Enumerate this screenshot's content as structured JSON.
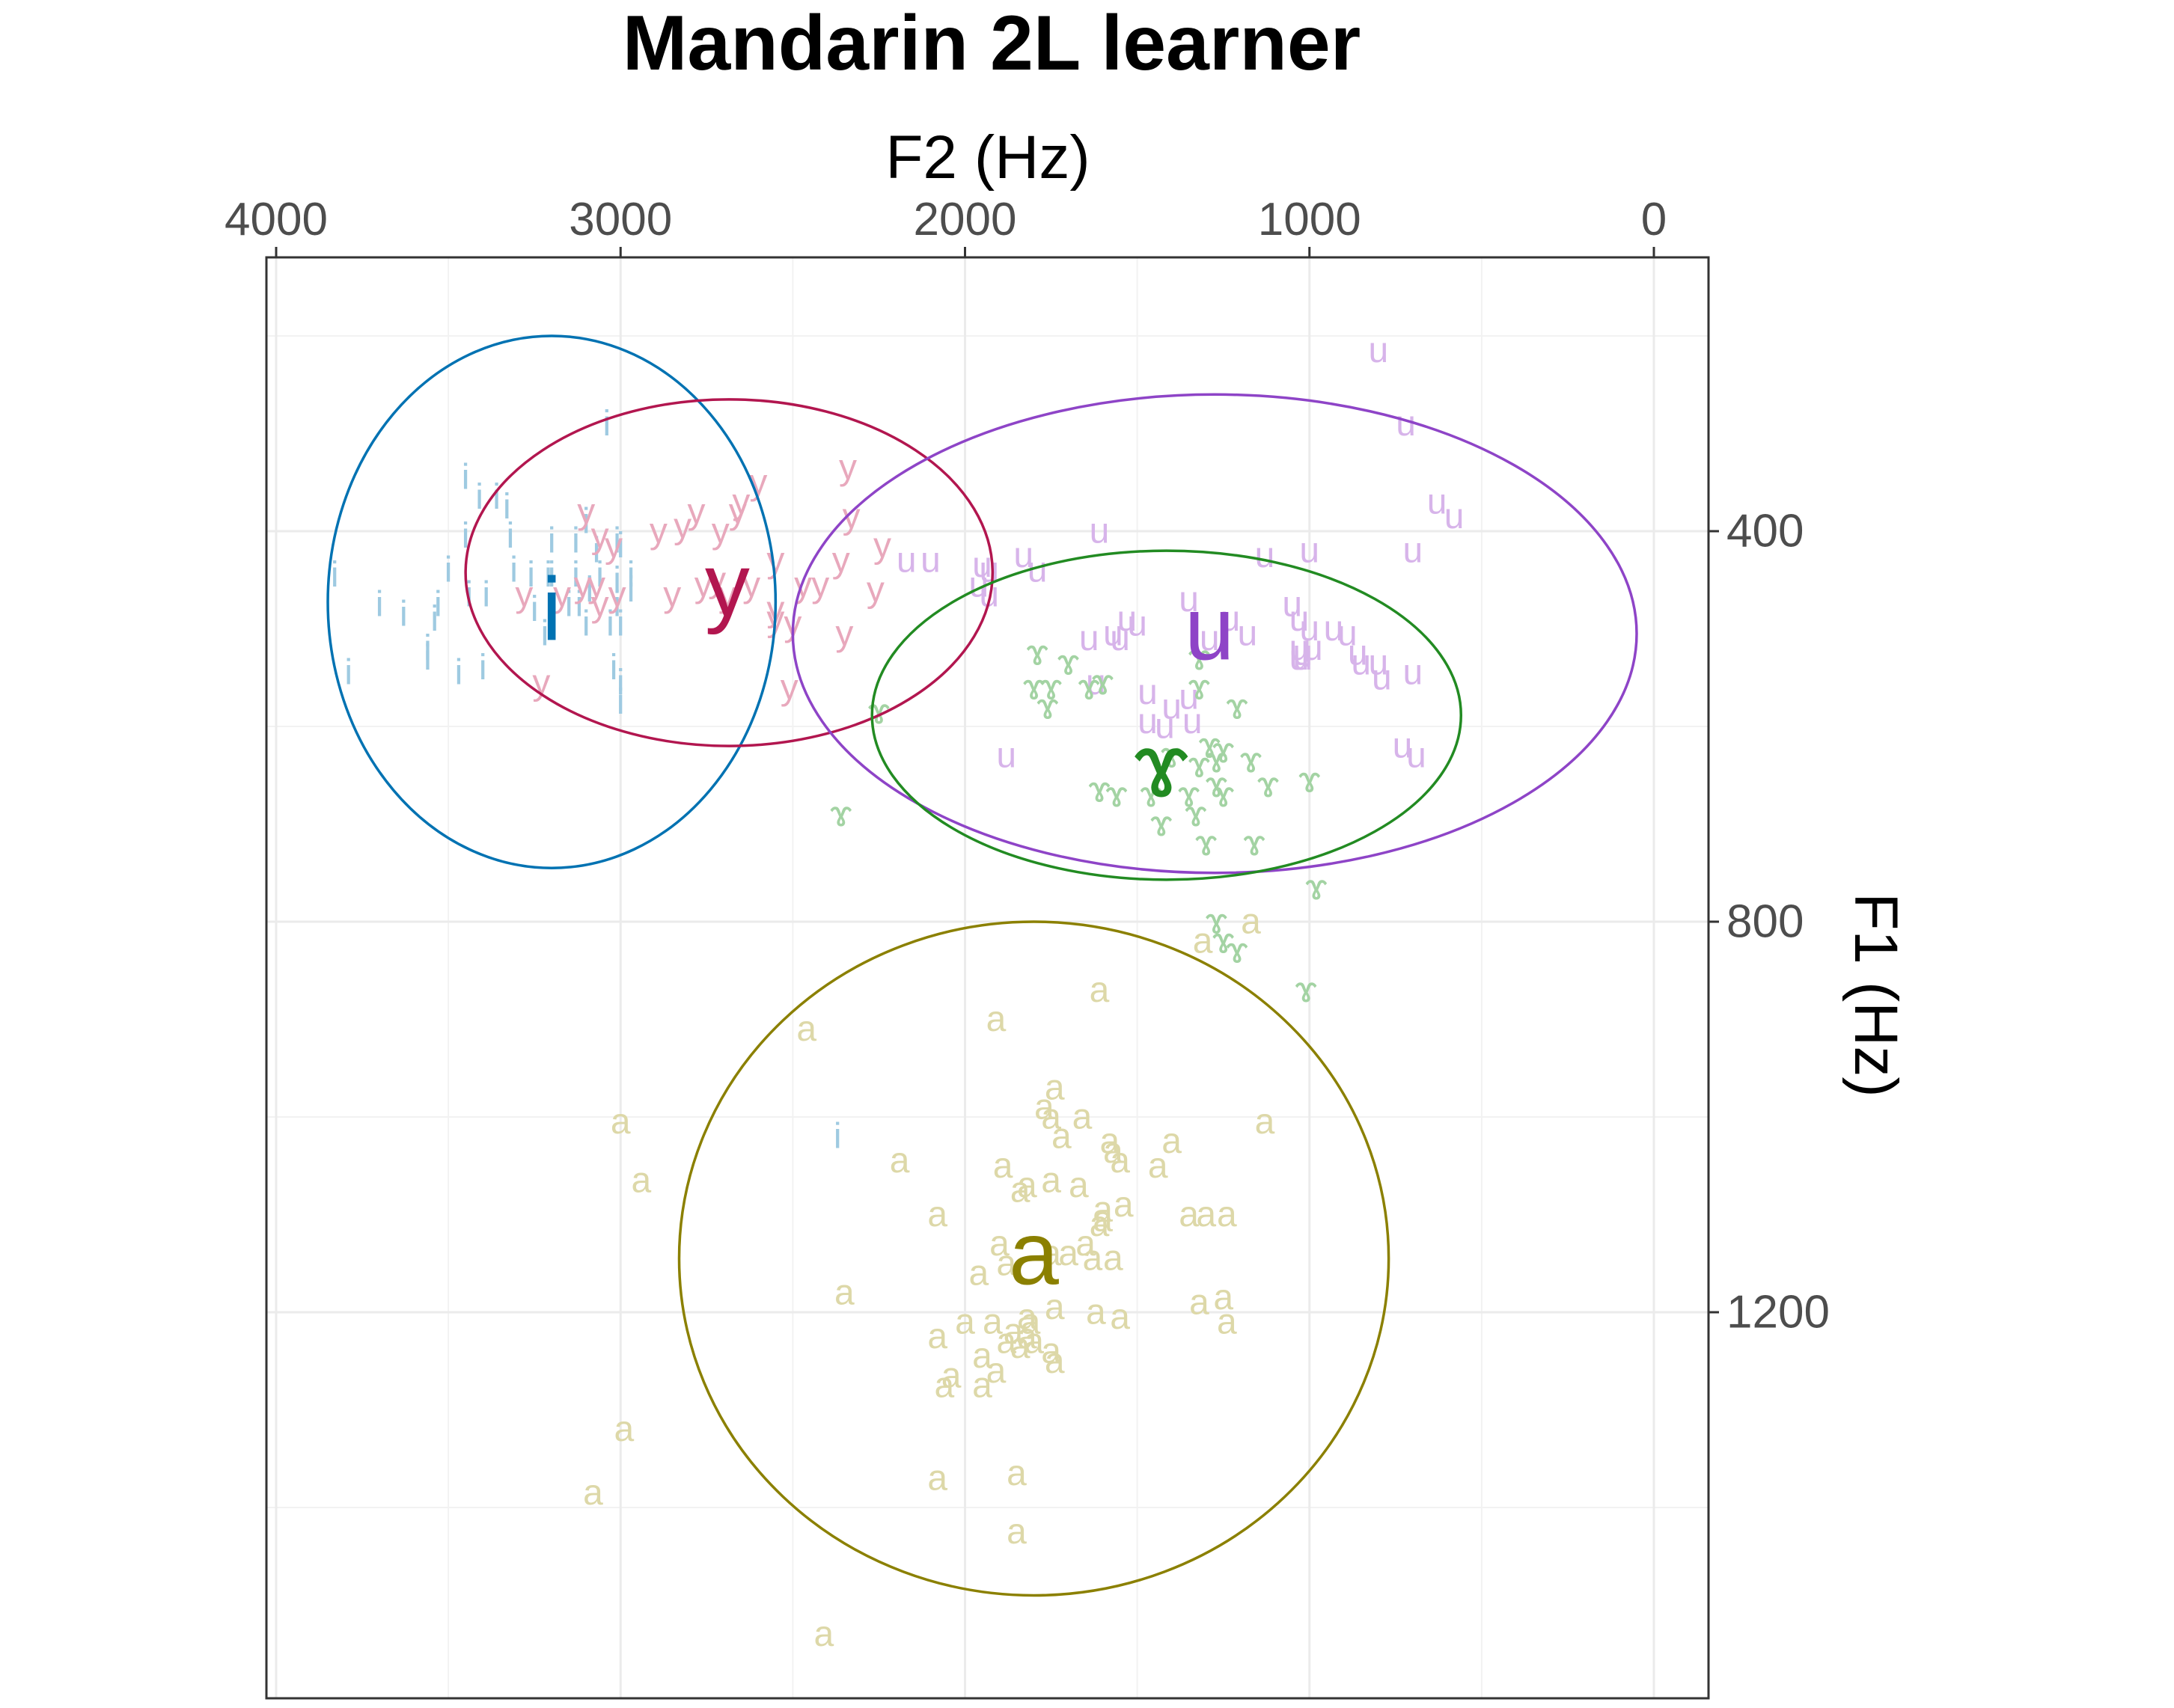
{
  "chart_data": {
    "type": "scatter",
    "title": "Mandarin 2L learner",
    "xlabel": "F2 (Hz)",
    "ylabel": "F1 (Hz)",
    "x_axis_position": "top",
    "y_axis_position": "right",
    "x_reversed": true,
    "y_reversed": true,
    "xlim": [
      4000,
      0
    ],
    "ylim": [
      200,
      1500
    ],
    "x_ticks": [
      4000,
      3000,
      2000,
      1000,
      0
    ],
    "x_tick_labels": [
      "4000",
      "3000",
      "2000",
      "1000",
      "0"
    ],
    "y_ticks": [
      400,
      800,
      1200
    ],
    "y_tick_labels": [
      "400",
      "800",
      "1200"
    ],
    "x_minor_ticks": [
      3500,
      2500,
      1500,
      500
    ],
    "y_minor_ticks": [
      200,
      600,
      1000,
      1400
    ],
    "grid": true,
    "series": [
      {
        "vowel": "i",
        "color": "#0072B2",
        "point_color": "#9ecae1",
        "mean": {
          "f2": 3200,
          "f1": 480
        },
        "ellipse": {
          "f2_min": 2550,
          "f2_max": 3850,
          "f1_min": 200,
          "f1_max": 745
        },
        "points": [
          [
            3040,
            290
          ],
          [
            3450,
            345
          ],
          [
            3360,
            365
          ],
          [
            3410,
            365
          ],
          [
            3330,
            375
          ],
          [
            3100,
            390
          ],
          [
            3450,
            405
          ],
          [
            3320,
            405
          ],
          [
            3010,
            410
          ],
          [
            3200,
            410
          ],
          [
            3130,
            410
          ],
          [
            3000,
            415
          ],
          [
            3070,
            420
          ],
          [
            3830,
            445
          ],
          [
            3500,
            440
          ],
          [
            3200,
            445
          ],
          [
            3260,
            445
          ],
          [
            3310,
            440
          ],
          [
            3210,
            445
          ],
          [
            3060,
            445
          ],
          [
            2970,
            445
          ],
          [
            3130,
            445
          ],
          [
            3010,
            450
          ],
          [
            3440,
            465
          ],
          [
            3390,
            465
          ],
          [
            3530,
            475
          ],
          [
            3150,
            475
          ],
          [
            3120,
            475
          ],
          [
            3010,
            475
          ],
          [
            2970,
            460
          ],
          [
            3090,
            460
          ],
          [
            3700,
            475
          ],
          [
            3630,
            485
          ],
          [
            3540,
            490
          ],
          [
            3250,
            480
          ],
          [
            3000,
            495
          ],
          [
            3030,
            495
          ],
          [
            3100,
            495
          ],
          [
            3220,
            505
          ],
          [
            3560,
            520
          ],
          [
            3560,
            530
          ],
          [
            3400,
            540
          ],
          [
            3020,
            540
          ],
          [
            3000,
            555
          ],
          [
            3790,
            545
          ],
          [
            3470,
            545
          ],
          [
            3000,
            575
          ],
          [
            2370,
            1020
          ]
        ]
      },
      {
        "vowel": "y",
        "color": "#B2164F",
        "point_color": "#e8a8bc",
        "mean": {
          "f2": 2690,
          "f1": 455
        },
        "ellipse": {
          "f2_min": 1920,
          "f2_max": 3450,
          "f1_min": 265,
          "f1_max": 620
        },
        "points": [
          [
            2340,
            335
          ],
          [
            2600,
            350
          ],
          [
            2650,
            370
          ],
          [
            3100,
            380
          ],
          [
            2780,
            380
          ],
          [
            2660,
            380
          ],
          [
            2330,
            385
          ],
          [
            2820,
            395
          ],
          [
            2710,
            400
          ],
          [
            2890,
            400
          ],
          [
            3060,
            405
          ],
          [
            3020,
            415
          ],
          [
            2240,
            415
          ],
          [
            2360,
            430
          ],
          [
            2550,
            430
          ],
          [
            3110,
            455
          ],
          [
            3070,
            455
          ],
          [
            2720,
            450
          ],
          [
            2760,
            455
          ],
          [
            2620,
            455
          ],
          [
            2470,
            455
          ],
          [
            2420,
            455
          ],
          [
            2260,
            460
          ],
          [
            3280,
            465
          ],
          [
            3170,
            465
          ],
          [
            3010,
            465
          ],
          [
            2850,
            465
          ],
          [
            2690,
            465
          ],
          [
            3060,
            475
          ],
          [
            2550,
            480
          ],
          [
            2550,
            490
          ],
          [
            2500,
            495
          ],
          [
            2350,
            505
          ],
          [
            3230,
            555
          ],
          [
            2510,
            560
          ]
        ]
      },
      {
        "vowel": "u",
        "color": "#8E44C7",
        "point_color": "#d7b4ea",
        "mean": {
          "f2": 1290,
          "f1": 500
        },
        "ellipse": {
          "f2_min": 50,
          "f2_max": 2500,
          "f1_min": 260,
          "f1_max": 750
        },
        "points": [
          [
            800,
            215
          ],
          [
            720,
            290
          ],
          [
            630,
            370
          ],
          [
            580,
            385
          ],
          [
            1610,
            400
          ],
          [
            700,
            420
          ],
          [
            1000,
            420
          ],
          [
            1130,
            425
          ],
          [
            1830,
            425
          ],
          [
            2170,
            430
          ],
          [
            2100,
            430
          ],
          [
            1950,
            435
          ],
          [
            1930,
            440
          ],
          [
            1790,
            440
          ],
          [
            1960,
            455
          ],
          [
            1350,
            470
          ],
          [
            1050,
            475
          ],
          [
            1930,
            465
          ],
          [
            1030,
            490
          ],
          [
            1230,
            490
          ],
          [
            1530,
            490
          ],
          [
            1500,
            495
          ],
          [
            1000,
            500
          ],
          [
            930,
            500
          ],
          [
            1180,
            505
          ],
          [
            890,
            505
          ],
          [
            1640,
            510
          ],
          [
            1290,
            510
          ],
          [
            990,
            520
          ],
          [
            1030,
            520
          ],
          [
            1550,
            510
          ],
          [
            1570,
            505
          ],
          [
            1020,
            525
          ],
          [
            1030,
            530
          ],
          [
            860,
            525
          ],
          [
            1020,
            530
          ],
          [
            800,
            535
          ],
          [
            850,
            535
          ],
          [
            700,
            545
          ],
          [
            790,
            550
          ],
          [
            1620,
            555
          ],
          [
            1470,
            565
          ],
          [
            1350,
            570
          ],
          [
            1400,
            580
          ],
          [
            1340,
            595
          ],
          [
            1470,
            595
          ],
          [
            1420,
            600
          ],
          [
            1880,
            630
          ],
          [
            730,
            620
          ],
          [
            690,
            630
          ]
        ]
      },
      {
        "vowel": "ɤ",
        "color": "#228B22",
        "point_color": "#a3d3a3",
        "mean": {
          "f2": 1430,
          "f1": 640
        },
        "ellipse": {
          "f2_min": 560,
          "f2_max": 2270,
          "f1_min": 420,
          "f1_max": 757
        },
        "points": [
          [
            1790,
            525
          ],
          [
            1700,
            535
          ],
          [
            1600,
            555
          ],
          [
            1750,
            560
          ],
          [
            1640,
            560
          ],
          [
            1800,
            560
          ],
          [
            1320,
            530
          ],
          [
            1320,
            560
          ],
          [
            1210,
            580
          ],
          [
            1760,
            580
          ],
          [
            2250,
            585
          ],
          [
            1290,
            620
          ],
          [
            1250,
            625
          ],
          [
            1400,
            630
          ],
          [
            1170,
            635
          ],
          [
            1320,
            640
          ],
          [
            1270,
            635
          ],
          [
            1120,
            660
          ],
          [
            1000,
            655
          ],
          [
            1270,
            660
          ],
          [
            1460,
            670
          ],
          [
            1560,
            670
          ],
          [
            1610,
            665
          ],
          [
            1350,
            670
          ],
          [
            1250,
            670
          ],
          [
            1330,
            690
          ],
          [
            2360,
            690
          ],
          [
            1430,
            700
          ],
          [
            1300,
            720
          ],
          [
            1160,
            720
          ],
          [
            980,
            765
          ],
          [
            1270,
            800
          ],
          [
            1250,
            820
          ],
          [
            1210,
            830
          ],
          [
            1010,
            870
          ]
        ]
      },
      {
        "vowel": "a",
        "color": "#8B8000",
        "point_color": "#ddd8a8",
        "mean": {
          "f2": 1800,
          "f1": 1140
        },
        "ellipse": {
          "f2_min": 770,
          "f2_max": 2830,
          "f1_min": 800,
          "f1_max": 1490
        },
        "points": [
          [
            1170,
            800
          ],
          [
            1310,
            820
          ],
          [
            1610,
            870
          ],
          [
            1910,
            900
          ],
          [
            2460,
            910
          ],
          [
            1740,
            970
          ],
          [
            1770,
            990
          ],
          [
            1660,
            1000
          ],
          [
            1750,
            1000
          ],
          [
            3000,
            1005
          ],
          [
            1130,
            1005
          ],
          [
            1720,
            1020
          ],
          [
            1400,
            1025
          ],
          [
            1580,
            1025
          ],
          [
            1570,
            1035
          ],
          [
            1550,
            1045
          ],
          [
            2190,
            1045
          ],
          [
            1440,
            1050
          ],
          [
            1890,
            1050
          ],
          [
            2940,
            1065
          ],
          [
            1750,
            1065
          ],
          [
            1820,
            1070
          ],
          [
            1670,
            1070
          ],
          [
            1840,
            1075
          ],
          [
            1540,
            1090
          ],
          [
            1600,
            1095
          ],
          [
            1600,
            1105
          ],
          [
            1350,
            1100
          ],
          [
            1300,
            1100
          ],
          [
            1240,
            1100
          ],
          [
            2080,
            1100
          ],
          [
            1610,
            1110
          ],
          [
            1900,
            1130
          ],
          [
            1650,
            1130
          ],
          [
            1700,
            1140
          ],
          [
            1570,
            1145
          ],
          [
            1880,
            1150
          ],
          [
            1630,
            1145
          ],
          [
            1750,
            1140
          ],
          [
            1960,
            1160
          ],
          [
            2350,
            1180
          ],
          [
            1320,
            1190
          ],
          [
            1250,
            1185
          ],
          [
            1620,
            1200
          ],
          [
            1740,
            1195
          ],
          [
            1550,
            1205
          ],
          [
            1820,
            1205
          ],
          [
            1240,
            1210
          ],
          [
            2000,
            1210
          ],
          [
            1920,
            1210
          ],
          [
            1860,
            1220
          ],
          [
            1810,
            1210
          ],
          [
            2080,
            1225
          ],
          [
            1820,
            1225
          ],
          [
            1800,
            1230
          ],
          [
            1880,
            1230
          ],
          [
            1840,
            1235
          ],
          [
            1750,
            1240
          ],
          [
            1950,
            1245
          ],
          [
            1740,
            1250
          ],
          [
            1910,
            1260
          ],
          [
            2040,
            1265
          ],
          [
            2060,
            1275
          ],
          [
            1950,
            1275
          ],
          [
            2990,
            1320
          ],
          [
            1850,
            1365
          ],
          [
            2080,
            1370
          ],
          [
            3080,
            1385
          ],
          [
            1850,
            1425
          ],
          [
            2410,
            1530
          ]
        ]
      }
    ]
  }
}
